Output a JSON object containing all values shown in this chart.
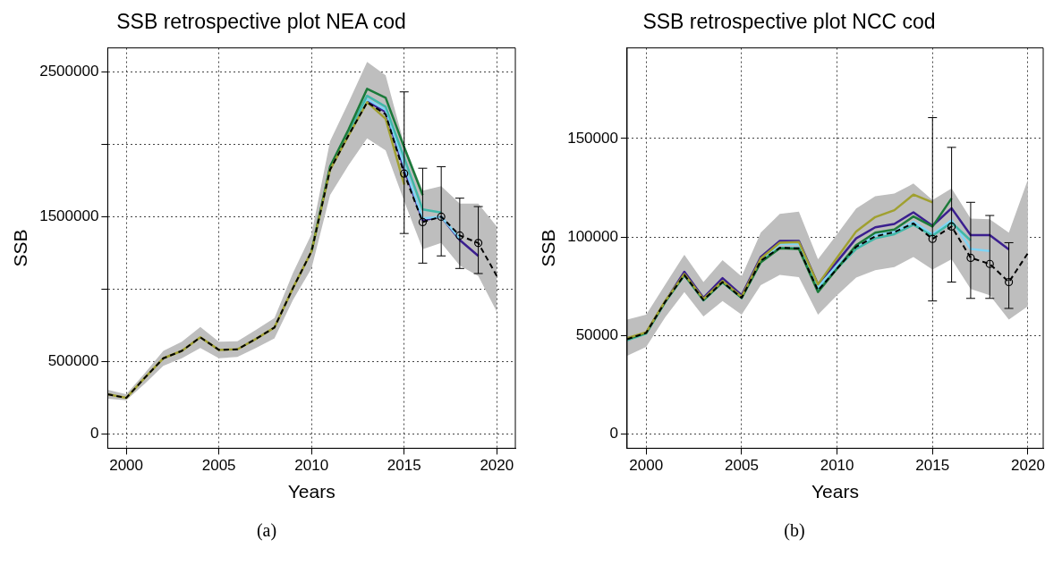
{
  "chart_data": [
    {
      "type": "line",
      "title": "SSB retrospective plot NEA cod",
      "xlabel": "Years",
      "ylabel": "SSB",
      "grid": true,
      "legend": false,
      "xlim": [
        1999,
        2021
      ],
      "xticks": [
        2000,
        2005,
        2010,
        2015,
        2020
      ],
      "ylim": [
        -100000,
        2668000
      ],
      "yticks": [
        0,
        500000,
        {
          "value": 1000000,
          "label": null
        },
        1500000,
        {
          "value": 2000000,
          "label": null
        },
        2500000
      ],
      "x": [
        1999,
        2000,
        2001,
        2002,
        2003,
        2004,
        2005,
        2006,
        2007,
        2008,
        2009,
        2010,
        2011,
        2012,
        2013,
        2014,
        2015,
        2016,
        2017,
        2018,
        2019,
        2020
      ],
      "series": [
        {
          "color": "#3b1f8f",
          "marker": "none",
          "line_style": "solid",
          "values": [
            null,
            null,
            null,
            null,
            null,
            null,
            null,
            null,
            null,
            null,
            null,
            null,
            null,
            null,
            2300000,
            2225000,
            1830000,
            1475000,
            1501000,
            1340000,
            1230000,
            null
          ]
        },
        {
          "color": "#80d4f5",
          "marker": "none",
          "line_style": "solid",
          "values": [
            null,
            null,
            null,
            null,
            null,
            null,
            null,
            null,
            null,
            null,
            null,
            null,
            null,
            2075000,
            2313000,
            2240000,
            1857000,
            1489000,
            1501000,
            1350000,
            null,
            null
          ]
        },
        {
          "color": "#40b8a8",
          "marker": "none",
          "line_style": "solid",
          "values": [
            null,
            null,
            null,
            null,
            null,
            null,
            null,
            null,
            null,
            null,
            null,
            1261000,
            1835000,
            2085000,
            2337000,
            2261000,
            1909000,
            1551000,
            1530000,
            null,
            null,
            null
          ]
        },
        {
          "color": "#1b7a3a",
          "marker": "none",
          "line_style": "solid",
          "values": [
            null,
            null,
            null,
            null,
            null,
            null,
            null,
            null,
            null,
            null,
            null,
            1261000,
            1847000,
            2105000,
            2385000,
            2323000,
            1981000,
            1650000,
            null,
            null,
            null,
            null
          ]
        },
        {
          "color": "#a0a030",
          "marker": "none",
          "line_style": "solid",
          "values": [
            273000,
            248000,
            387000,
            522000,
            573000,
            667000,
            580000,
            584000,
            656000,
            735000,
            1008000,
            1261000,
            1826000,
            2064000,
            2292000,
            2178000,
            1723000,
            null,
            null,
            null,
            null,
            null
          ]
        },
        {
          "color": "#000000",
          "marker": "none",
          "line_style": "dashed",
          "values": [
            273000,
            248000,
            387000,
            522000,
            573000,
            667000,
            580000,
            584000,
            656000,
            735000,
            1008000,
            1261000,
            1826000,
            2064000,
            2292000,
            2209000,
            1799000,
            1464000,
            1501000,
            1371000,
            1319000,
            1091000
          ],
          "lower": [
            242000,
            232000,
            346000,
            470000,
            522000,
            594000,
            522000,
            532000,
            594000,
            660000,
            925000,
            1143000,
            1650000,
            1857000,
            2043000,
            1960000,
            1609000,
            1277000,
            1319000,
            1164000,
            1091000,
            843000
          ],
          "upper": [
            304000,
            273000,
            418000,
            573000,
            636000,
            739000,
            636000,
            640000,
            718000,
            801000,
            1112000,
            1381000,
            2023000,
            2292000,
            2571000,
            2478000,
            2002000,
            1681000,
            1712000,
            1592000,
            1592000,
            1433000
          ]
        },
        {
          "type": "scatter",
          "color": "#000000",
          "marker": "circle",
          "x": [
            2015,
            2016,
            2017,
            2018,
            2019
          ],
          "values": [
            1799000,
            1464000,
            1501000,
            1371000,
            1319000
          ],
          "errors": [
            [
              1385000,
              2364000
            ],
            [
              1180000,
              1836000
            ],
            [
              1230000,
              1847000
            ],
            [
              1143000,
              1629000
            ],
            [
              1108000,
              1571000
            ]
          ]
        }
      ],
      "annotations": [
        "(a)"
      ]
    },
    {
      "type": "line",
      "title": "SSB retrospective plot NCC cod",
      "xlabel": "Years",
      "ylabel": "SSB",
      "grid": true,
      "legend": false,
      "xlim": [
        1999,
        2020.8
      ],
      "xticks": [
        2000,
        2005,
        2010,
        2015,
        2020
      ],
      "ylim": [
        -7300,
        196000
      ],
      "yticks": [
        0,
        50000,
        100000,
        150000
      ],
      "x": [
        1999,
        2000,
        2001,
        2002,
        2003,
        2004,
        2005,
        2006,
        2007,
        2008,
        2009,
        2010,
        2011,
        2012,
        2013,
        2014,
        2015,
        2016,
        2017,
        2018,
        2019,
        2020
      ],
      "series": [
        {
          "color": "#3b1f8f",
          "marker": "none",
          "line_style": "solid",
          "values": [
            48100,
            51300,
            67200,
            82300,
            69100,
            79100,
            70400,
            89800,
            98000,
            98000,
            75900,
            87500,
            99300,
            104900,
            106600,
            112500,
            105700,
            114600,
            100900,
            100900,
            93700,
            null
          ]
        },
        {
          "color": "#80d4f5",
          "marker": "none",
          "line_style": "solid",
          "values": [
            null,
            null,
            null,
            null,
            null,
            null,
            null,
            88200,
            96400,
            96400,
            74400,
            85500,
            94500,
            100900,
            102600,
            107700,
            101400,
            108500,
            93900,
            92900,
            null,
            null
          ]
        },
        {
          "color": "#40b8a8",
          "marker": "none",
          "line_style": "solid",
          "values": [
            47500,
            51000,
            67000,
            80500,
            67800,
            76900,
            69000,
            87500,
            94500,
            94300,
            73000,
            84000,
            93900,
            99300,
            101400,
            106200,
            100600,
            107300,
            98200,
            null,
            null,
            null
          ]
        },
        {
          "color": "#1b7a3a",
          "marker": "none",
          "line_style": "solid",
          "values": [
            48100,
            51300,
            67200,
            80700,
            68000,
            77100,
            69100,
            87100,
            94200,
            93900,
            72000,
            83900,
            95800,
            102200,
            103800,
            110400,
            105300,
            119600,
            null,
            null,
            null,
            null
          ]
        },
        {
          "color": "#a0a030",
          "marker": "none",
          "line_style": "solid",
          "values": [
            48600,
            51600,
            67500,
            81200,
            68500,
            77600,
            69600,
            89000,
            97100,
            97400,
            75900,
            89500,
            102800,
            110100,
            113600,
            121500,
            117600,
            null,
            null,
            null,
            null,
            null
          ]
        },
        {
          "color": "#000000",
          "marker": "none",
          "line_style": "dashed",
          "values": [
            48100,
            51300,
            67200,
            80700,
            68000,
            77100,
            69100,
            87900,
            94500,
            94200,
            72800,
            83900,
            95000,
            100300,
            102500,
            106900,
            99000,
            105300,
            89400,
            86300,
            77100,
            91800
          ],
          "lower": [
            39700,
            44200,
            59300,
            72000,
            59600,
            67500,
            60500,
            75500,
            80700,
            79600,
            60500,
            70400,
            79400,
            83100,
            84700,
            89800,
            83400,
            88700,
            73600,
            70400,
            58000,
            64800
          ],
          "upper": [
            58000,
            60500,
            75900,
            91000,
            77100,
            88200,
            79900,
            102200,
            111700,
            112800,
            88700,
            101400,
            114400,
            120700,
            122000,
            127100,
            118800,
            124700,
            109300,
            109000,
            102200,
            129200
          ]
        },
        {
          "type": "scatter",
          "color": "#000000",
          "marker": "circle",
          "x": [
            2015,
            2016,
            2017,
            2018,
            2019
          ],
          "values": [
            99000,
            105300,
            89400,
            86300,
            77100
          ],
          "errors": [
            [
              67500,
              160600
            ],
            [
              77100,
              145500
            ],
            [
              68800,
              117600
            ],
            [
              68800,
              110900
            ],
            [
              63700,
              97100
            ]
          ]
        }
      ],
      "annotations": [
        "(b)"
      ]
    }
  ]
}
